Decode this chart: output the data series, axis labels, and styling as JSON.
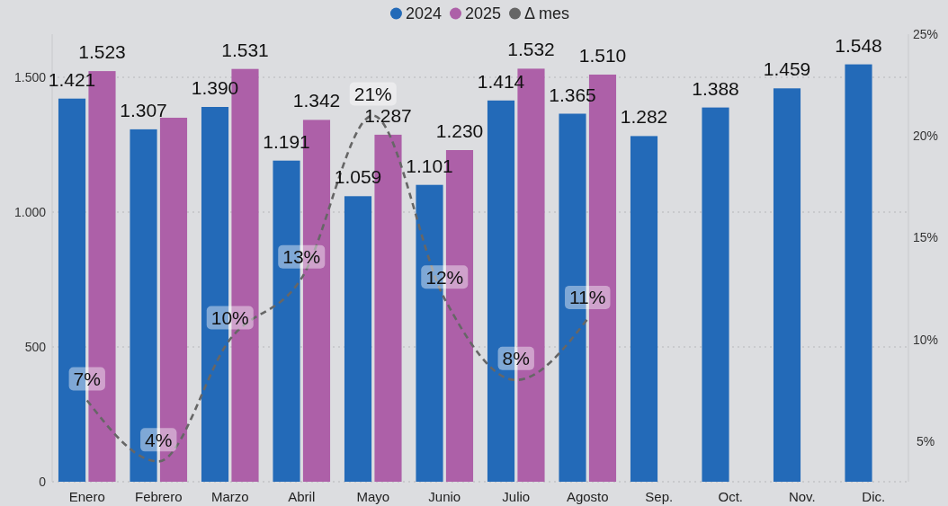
{
  "chart_data": {
    "type": "bar",
    "categories": [
      "Enero",
      "Febrero",
      "Marzo",
      "Abril",
      "Mayo",
      "Junio",
      "Julio",
      "Agosto",
      "Sep.",
      "Oct.",
      "Nov.",
      "Dic."
    ],
    "series": [
      {
        "name": "2024",
        "color": "#236ab8",
        "values": [
          1421,
          1307,
          1390,
          1191,
          1059,
          1101,
          1414,
          1365,
          1282,
          1388,
          1459,
          1548
        ],
        "value_labels": [
          "1.421",
          "1.307",
          "1.390",
          "1.191",
          "1.059",
          "1.101",
          "1.414",
          "1.365",
          "1.282",
          "1.388",
          "1.459",
          "1.548"
        ]
      },
      {
        "name": "2025",
        "color": "#ad60a8",
        "values": [
          1523,
          1350,
          1531,
          1342,
          1287,
          1230,
          1532,
          1510,
          null,
          null,
          null,
          null
        ],
        "value_labels": [
          "1.523",
          null,
          "1.531",
          "1.342",
          "1.287",
          "1.230",
          "1.532",
          "1.510",
          null,
          null,
          null,
          null
        ]
      },
      {
        "name": "Δ mes",
        "type": "line",
        "axis": "y2",
        "color": "#666666",
        "values": [
          7,
          4,
          10,
          13,
          21,
          12,
          8,
          11,
          null,
          null,
          null,
          null
        ],
        "value_labels": [
          "7%",
          "4%",
          "10%",
          "13%",
          "21%",
          "12%",
          "8%",
          "11%",
          null,
          null,
          null,
          null
        ]
      }
    ],
    "ylim": [
      0,
      1660
    ],
    "yticks": [
      0,
      500,
      {
        "value": 1000,
        "label": "1.000"
      },
      {
        "value": 1500,
        "label": "1.500"
      }
    ],
    "y2lim": [
      3,
      25
    ],
    "y2ticks": [
      {
        "value": 5,
        "label": "5%"
      },
      {
        "value": 10,
        "label": "10%"
      },
      {
        "value": 15,
        "label": "15%"
      },
      {
        "value": 20,
        "label": "20%"
      },
      {
        "value": 25,
        "label": "25%"
      }
    ],
    "grid": "y",
    "legend": "top",
    "line_style": "dashed"
  }
}
